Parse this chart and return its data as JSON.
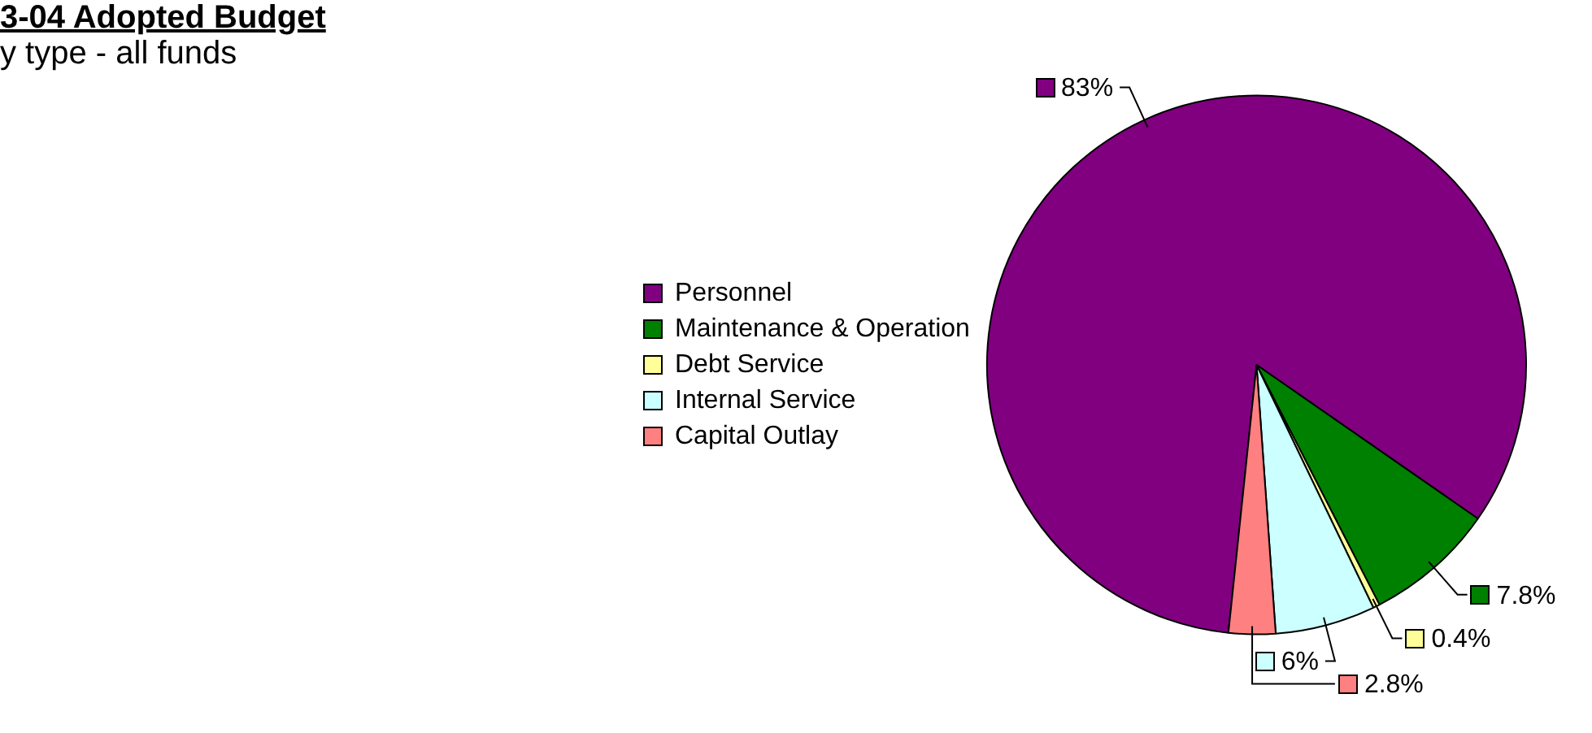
{
  "chart_data": {
    "type": "pie",
    "title": "3-04 Adopted Budget",
    "subtitle": "y type - all funds",
    "categories": [
      "Personnel",
      "Maintenance & Operation",
      "Debt Service",
      "Internal Service",
      "Capital Outlay"
    ],
    "values": [
      83,
      7.8,
      0.4,
      6,
      2.8
    ],
    "colors": [
      "#800080",
      "#008000",
      "#ffff99",
      "#ccffff",
      "#ff8080"
    ],
    "value_labels": [
      "83%",
      "7.8%",
      "0.4%",
      "6%",
      "2.8%"
    ],
    "legend": "left"
  }
}
